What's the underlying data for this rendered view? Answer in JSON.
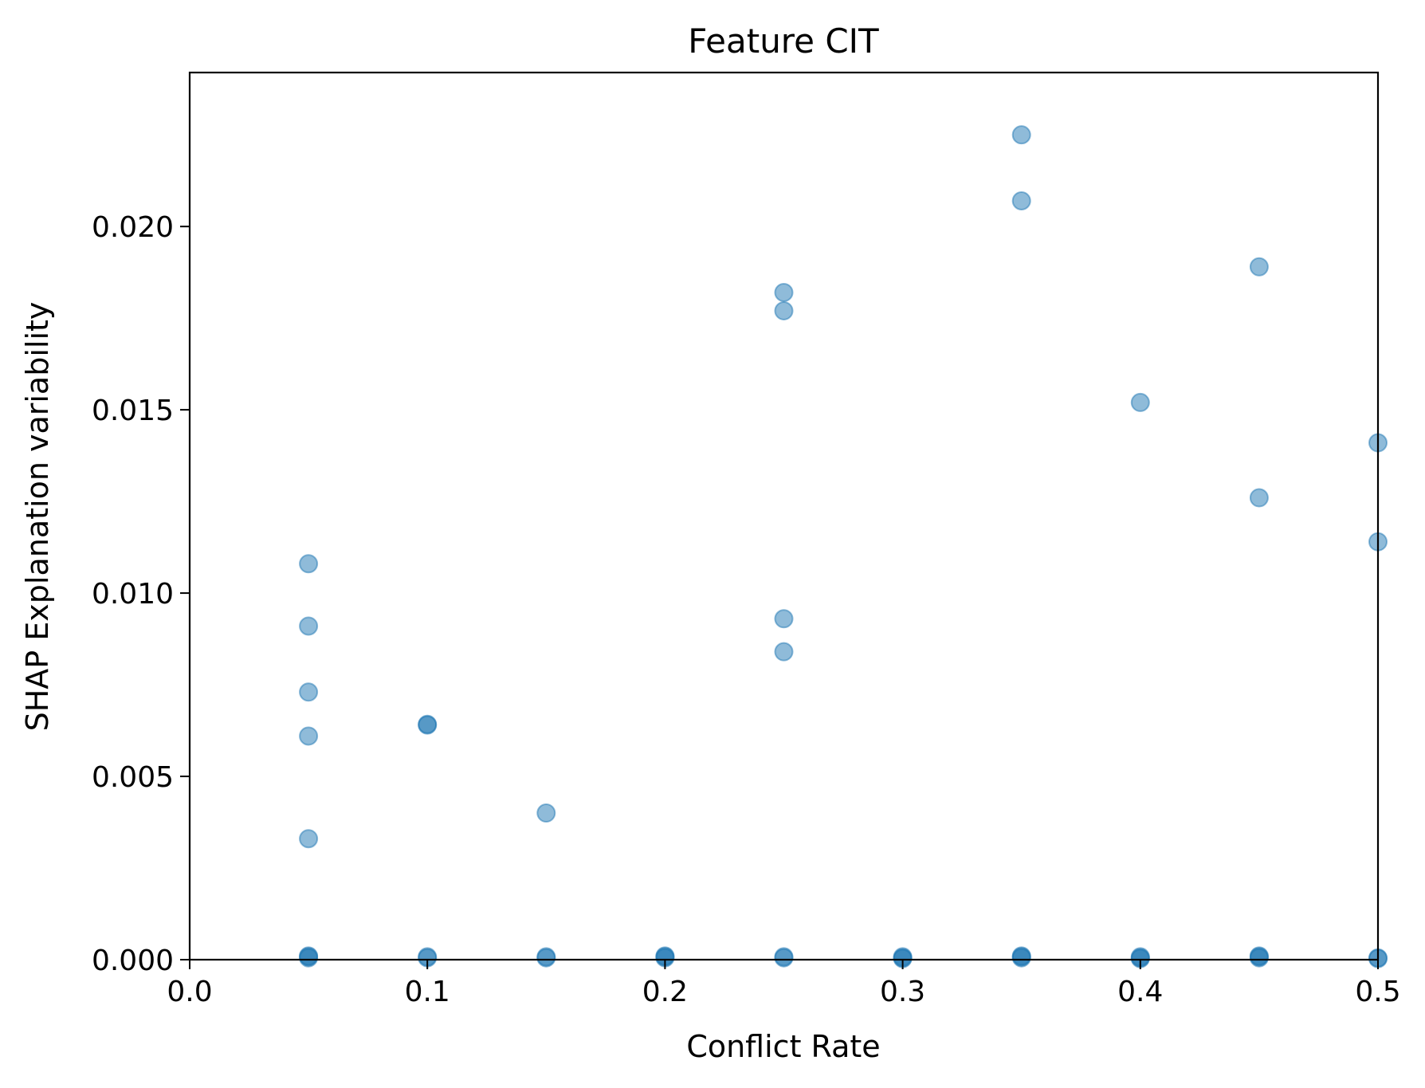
{
  "chart_data": {
    "type": "scatter",
    "title": "Feature CIT",
    "xlabel": "Conflict Rate",
    "ylabel": "SHAP Explanation variability",
    "xlim": [
      0.0,
      0.5
    ],
    "ylim": [
      0.0,
      0.0242
    ],
    "xticks": [
      0.0,
      0.1,
      0.2,
      0.3,
      0.4,
      0.5
    ],
    "xtick_labels": [
      "0.0",
      "0.1",
      "0.2",
      "0.3",
      "0.4",
      "0.5"
    ],
    "yticks": [
      0.0,
      0.005,
      0.01,
      0.015,
      0.02
    ],
    "ytick_labels": [
      "0.000",
      "0.005",
      "0.010",
      "0.015",
      "0.020"
    ],
    "grid": false,
    "marker_color": "#1f77b4",
    "marker_alpha": 0.5,
    "series": [
      {
        "x": [
          0.05,
          0.05,
          0.05,
          0.05,
          0.05,
          0.05,
          0.05,
          0.05,
          0.1,
          0.1,
          0.1,
          0.1,
          0.15,
          0.15,
          0.15,
          0.2,
          0.2,
          0.2,
          0.25,
          0.25,
          0.25,
          0.25,
          0.25,
          0.25,
          0.3,
          0.3,
          0.3,
          0.35,
          0.35,
          0.35,
          0.35,
          0.35,
          0.4,
          0.4,
          0.4,
          0.4,
          0.45,
          0.45,
          0.45,
          0.45,
          0.45,
          0.5,
          0.5,
          0.5,
          0.5
        ],
        "y": [
          0.0108,
          0.0091,
          0.0073,
          0.0061,
          0.0033,
          0.0001,
          5e-05,
          8e-05,
          0.0064,
          0.00642,
          5e-05,
          8e-05,
          0.004,
          5e-05,
          8e-05,
          0.0001,
          5e-05,
          8e-05,
          0.0182,
          0.0177,
          0.0093,
          0.0084,
          5e-05,
          8e-05,
          5e-05,
          3e-05,
          8e-05,
          0.0225,
          0.0207,
          5e-05,
          8e-05,
          0.0001,
          0.0152,
          5e-05,
          3e-05,
          8e-05,
          0.0189,
          0.0126,
          0.0001,
          5e-05,
          8e-05,
          0.0141,
          0.0114,
          3e-05,
          5e-05
        ]
      }
    ]
  }
}
